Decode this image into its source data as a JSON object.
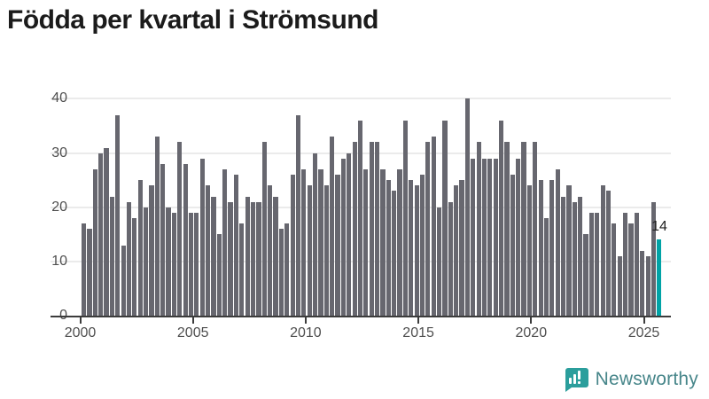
{
  "title": "Födda per kvartal i Strömsund",
  "chart_data": {
    "type": "bar",
    "title": "Födda per kvartal i Strömsund",
    "x_start": "2000 Q1",
    "x_end": "2025 Q3",
    "x_tick_labels": [
      "2000",
      "2005",
      "2010",
      "2015",
      "2020",
      "2025"
    ],
    "y_ticks": [
      0,
      10,
      20,
      30,
      40
    ],
    "ylim": [
      0,
      40
    ],
    "grid": "horizontal",
    "legend": "none",
    "values": [
      17,
      16,
      27,
      30,
      31,
      22,
      37,
      13,
      21,
      18,
      25,
      20,
      24,
      33,
      28,
      20,
      19,
      32,
      28,
      19,
      19,
      29,
      24,
      22,
      15,
      27,
      21,
      26,
      17,
      22,
      21,
      21,
      32,
      24,
      22,
      16,
      17,
      26,
      37,
      27,
      24,
      30,
      27,
      24,
      33,
      26,
      29,
      30,
      32,
      36,
      27,
      32,
      32,
      27,
      25,
      23,
      27,
      36,
      25,
      24,
      26,
      32,
      33,
      20,
      36,
      21,
      24,
      25,
      40,
      29,
      32,
      29,
      29,
      29,
      36,
      32,
      26,
      29,
      32,
      24,
      32,
      25,
      18,
      25,
      27,
      22,
      24,
      21,
      22,
      15,
      19,
      19,
      24,
      23,
      17,
      11,
      19,
      17,
      19,
      12,
      11,
      21,
      14
    ],
    "highlight": {
      "index": 102,
      "label": "14",
      "color": "#00a3a6"
    }
  },
  "colors": {
    "bar": "#67676f",
    "highlight_bar": "#00a3a6",
    "axis": "#3c3c3c",
    "grid": "#ebebeb",
    "logo_bubble": "#2b9e9c",
    "logo_text": "#47868a"
  },
  "branding": {
    "logo_text": "Newsworthy"
  }
}
